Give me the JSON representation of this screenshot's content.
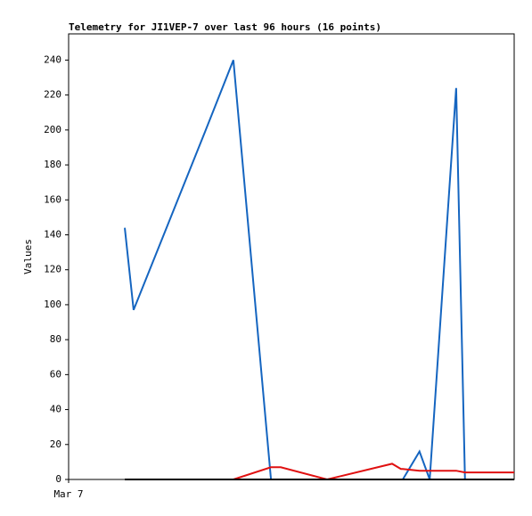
{
  "chart_data": {
    "type": "line",
    "title": "Telemetry for JI1VEP-7 over last 96 hours (16 points)",
    "y_label": "Values",
    "x": [
      12.1,
      14.0,
      29.4,
      35.5,
      43.6,
      45.7,
      55.7,
      69.7,
      71.6,
      72.0,
      75.6,
      77.8,
      83.5,
      85.4,
      89.9,
      96
    ],
    "xlim": [
      0,
      96
    ],
    "xticks": [
      {
        "value": 0,
        "label": "Mar 7"
      }
    ],
    "ylim": [
      0,
      255
    ],
    "yticks": [
      0,
      20,
      40,
      60,
      80,
      100,
      120,
      140,
      160,
      180,
      200,
      220,
      240
    ],
    "series": [
      {
        "color": "#1565c0",
        "values": [
          144,
          97,
          199,
          240,
          0,
          0,
          0,
          0,
          0,
          0,
          16,
          0,
          224,
          0,
          0,
          0
        ]
      },
      {
        "color": "#e01010",
        "values": [
          0,
          0,
          0,
          0,
          7,
          7,
          0,
          9,
          6,
          6,
          5,
          5,
          5,
          4,
          4,
          4
        ]
      },
      {
        "color": "#000000",
        "values": [
          0,
          0,
          0,
          0,
          0,
          0,
          0,
          0,
          0,
          0,
          0,
          0,
          0,
          0,
          0,
          0
        ]
      }
    ]
  }
}
